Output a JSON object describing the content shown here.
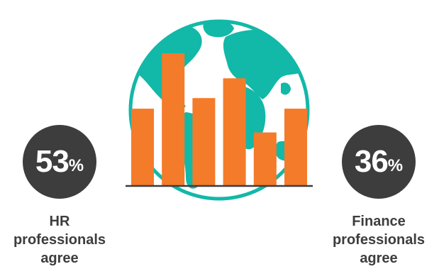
{
  "left_stat": {
    "value": "53",
    "unit": "%",
    "label_lines": [
      "HR",
      "professionals",
      "agree"
    ]
  },
  "right_stat": {
    "value": "36",
    "unit": "%",
    "label_lines": [
      "Finance",
      "professionals",
      "agree"
    ]
  },
  "colors": {
    "globe_ocean": "#ffffff",
    "globe_land": "#12b8a8",
    "globe_ring": "#12b8a8",
    "bars": "#f47b2a",
    "circle": "#3d3d3d",
    "text": "#3d3d3d"
  },
  "icons": [
    "globe-icon",
    "bar-chart-icon"
  ],
  "bar_levels": [
    0.58,
    1.0,
    0.66,
    0.81,
    0.4,
    0.58
  ]
}
